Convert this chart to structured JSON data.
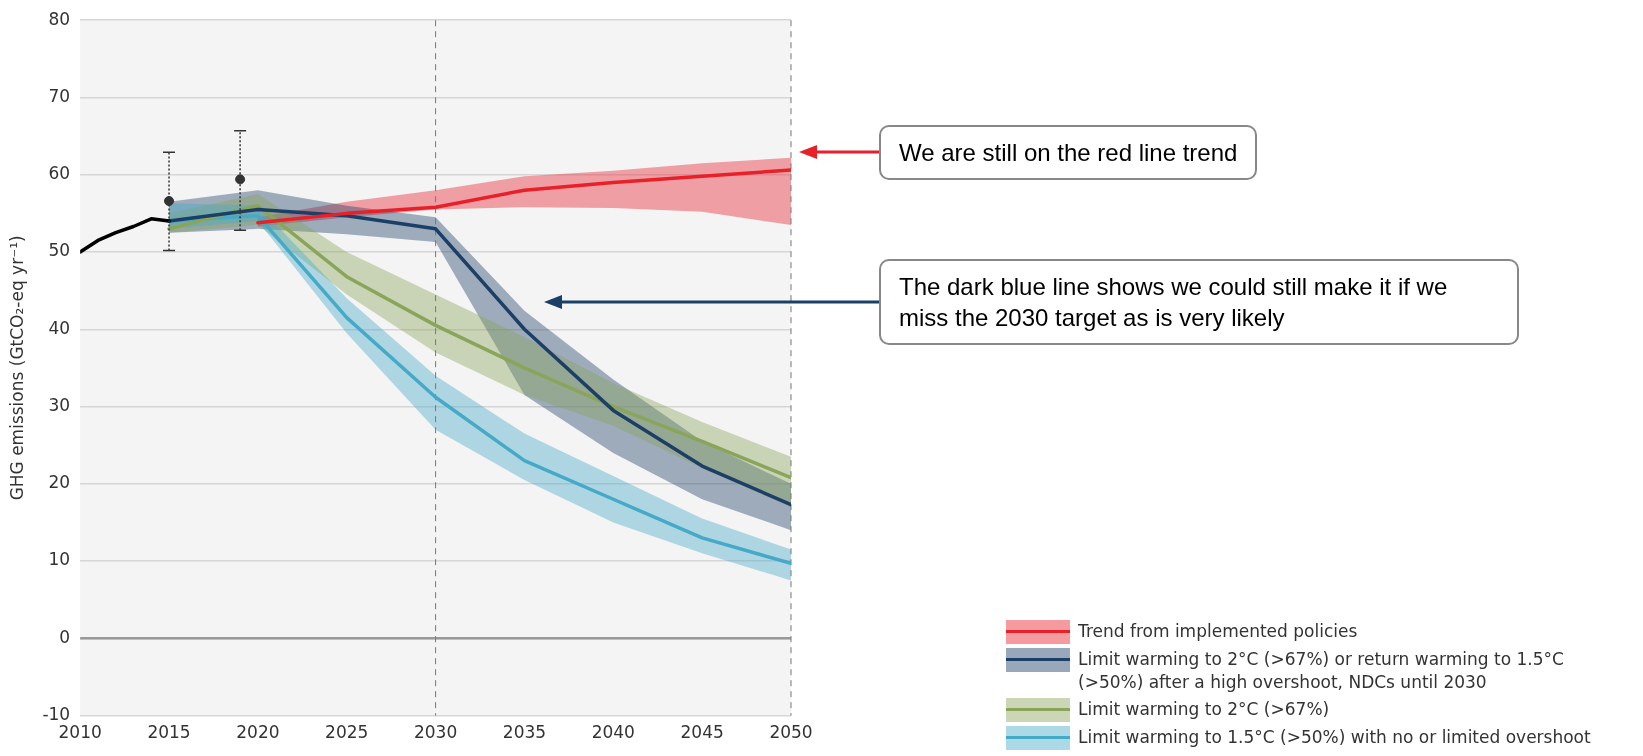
{
  "chart_data": {
    "type": "line",
    "ylabel": "GHG emissions (GtCO₂-eq yr⁻¹)",
    "xlim": [
      2010,
      2050
    ],
    "xticks": [
      2010,
      2015,
      2020,
      2025,
      2030,
      2035,
      2040,
      2045,
      2050
    ],
    "ylim": [
      -10,
      80
    ],
    "yticks": [
      -10,
      0,
      10,
      20,
      30,
      40,
      50,
      60,
      70,
      80
    ],
    "grid": "y",
    "legend": "bottom right",
    "line_style": "solid",
    "series": [
      {
        "color": "#000000",
        "x": [
          2010,
          2011,
          2012,
          2013,
          2014,
          2015
        ],
        "values": [
          50,
          51.5,
          52.5,
          53.3,
          54.3,
          54
        ]
      },
      {
        "type": "scatter",
        "marker": "circle",
        "color": "#333333",
        "x": [
          2015,
          2019
        ],
        "values": [
          56.6,
          59.4
        ],
        "errors": [
          [
            50.2,
            62.9
          ],
          [
            52.8,
            65.7
          ]
        ]
      },
      {
        "name": "Trend from implemented policies",
        "color": "#e8202a",
        "x": [
          2020,
          2025,
          2030,
          2035,
          2040,
          2045,
          2050
        ],
        "values": [
          53.8,
          55,
          55.8,
          58,
          59,
          59.8,
          60.6
        ],
        "lower": [
          53.3,
          54.5,
          55.5,
          55.8,
          55.7,
          55.2,
          53.5
        ],
        "upper": [
          54.5,
          56.5,
          58,
          59.8,
          60.5,
          61.5,
          62.2
        ]
      },
      {
        "name": "Limit warming to 2°C (>67%) or return warming to 1.5°C (>50%) after a high overshoot, NDCs until 2030",
        "color": "#1b3f66",
        "x": [
          2015,
          2020,
          2025,
          2030,
          2035,
          2040,
          2045,
          2050
        ],
        "values": [
          54,
          55.5,
          54.7,
          53,
          40,
          29.5,
          22.3,
          17.3
        ],
        "lower": [
          52.5,
          53,
          52.3,
          51.3,
          31.5,
          24,
          18,
          14
        ],
        "upper": [
          56.5,
          58,
          56,
          54.5,
          42.4,
          33.5,
          25.5,
          20
        ]
      },
      {
        "name": "Limit warming to 2°C (>67%)",
        "color": "#8aa55a",
        "x": [
          2015,
          2020,
          2025,
          2030,
          2035,
          2040,
          2045,
          2050
        ],
        "values": [
          53,
          56,
          46.8,
          40.5,
          35,
          30,
          25.5,
          20.8
        ],
        "lower": [
          52.5,
          53.5,
          44.5,
          37,
          31.5,
          27.5,
          22,
          17
        ],
        "upper": [
          55,
          57.5,
          50,
          44.5,
          39,
          33,
          28,
          23.5
        ]
      },
      {
        "name": "Limit warming to 1.5°C (>50%) with no or limited overshoot",
        "color": "#45aac8",
        "x": [
          2015,
          2020,
          2025,
          2030,
          2035,
          2040,
          2045,
          2050
        ],
        "values": [
          54,
          54.7,
          41.5,
          31.2,
          23,
          18,
          13,
          9.7
        ],
        "lower": [
          53,
          54,
          39.5,
          27,
          20.5,
          15,
          11,
          7.5
        ],
        "upper": [
          56.3,
          56,
          44,
          34,
          26.5,
          21,
          15.5,
          11.5
        ]
      }
    ],
    "ref_lines": [
      {
        "axis": "y",
        "value": 0,
        "color": "#999999",
        "line_style": "solid"
      },
      {
        "axis": "x",
        "value": 2030,
        "color": "#777777",
        "line_style": "dashed"
      },
      {
        "axis": "x",
        "value": 2050,
        "color": "#777777",
        "line_style": "dashed"
      }
    ],
    "annotations": [
      "We are still on the red line trend",
      "The dark blue line shows we could still make it if we miss the 2030 target as is very likely"
    ]
  }
}
